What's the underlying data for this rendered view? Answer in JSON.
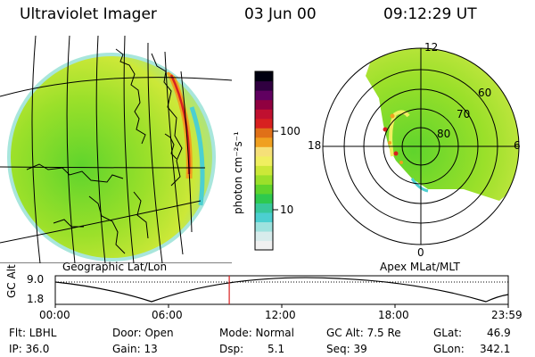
{
  "header": {
    "instrument": "Ultraviolet Imager",
    "date": "03 Jun 00",
    "time": "09:12:29 UT"
  },
  "colorbar": {
    "unit_label": "photon cm⁻²s⁻¹",
    "tick_100": "100",
    "tick_10": "10",
    "colors": [
      "#f0f0f0",
      "#d8ecec",
      "#9ee2de",
      "#4ccfd0",
      "#38c89a",
      "#2ec94e",
      "#5fd42c",
      "#9be02a",
      "#cce838",
      "#f0ef60",
      "#f6e078",
      "#f0a020",
      "#e07018",
      "#d82020",
      "#c01030",
      "#900040",
      "#600060",
      "#300040",
      "#000010"
    ]
  },
  "panels": {
    "left_label": "Geographic Lat/Lon",
    "right_label": "Apex MLat/MLT",
    "polar": {
      "mlt_12": "12",
      "mlt_18": "18",
      "mlt_6": "6",
      "mlt_0": "0",
      "lat_60": "60",
      "lat_70": "70",
      "lat_80": "80"
    }
  },
  "timeline": {
    "axis_label": "GC Alt",
    "y_top": "9.0",
    "y_bottom": "1.8",
    "ticks": [
      "00:00",
      "06:00",
      "12:00",
      "18:00",
      "23:59"
    ],
    "current_time_fraction": 0.384
  },
  "info": {
    "filter": "Flt: LBHL",
    "ip": "IP: 36.0",
    "door": "Door: Open",
    "gain": "Gain: 13",
    "mode": "Mode: Normal",
    "dsp_label": "Dsp:",
    "dsp_value": "5.1",
    "gc_alt": "GC Alt: 7.5 Re",
    "seq": "Seq: 39",
    "glat": "GLat:",
    "glat_value": "46.9",
    "glon": "GLon:",
    "glon_value": "342.1"
  }
}
